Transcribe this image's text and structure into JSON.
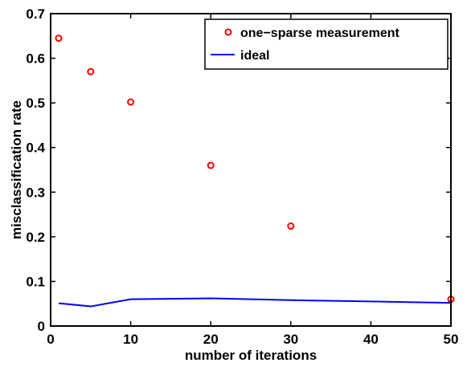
{
  "chart_data": {
    "type": "scatter",
    "xlabel": "number of iterations",
    "ylabel": "misclassification rate",
    "xlim": [
      0,
      50
    ],
    "ylim": [
      0,
      0.7
    ],
    "xticks": [
      "0",
      "10",
      "20",
      "30",
      "40",
      "50"
    ],
    "yticks": [
      "0",
      "0.1",
      "0.2",
      "0.3",
      "0.4",
      "0.5",
      "0.6",
      "0.7"
    ],
    "grid": false,
    "legend_position": "top-right",
    "series": [
      {
        "name": "one−sparse measurement",
        "style": "markers",
        "marker": "circle-open",
        "color": "#ff0000",
        "x": [
          1,
          5,
          10,
          20,
          30,
          50
        ],
        "y": [
          0.645,
          0.57,
          0.502,
          0.36,
          0.224,
          0.06
        ]
      },
      {
        "name": "ideal",
        "style": "line",
        "color": "#0000ff",
        "x": [
          1,
          5,
          10,
          20,
          30,
          40,
          50
        ],
        "y": [
          0.051,
          0.044,
          0.06,
          0.062,
          0.058,
          0.055,
          0.052
        ]
      }
    ]
  }
}
